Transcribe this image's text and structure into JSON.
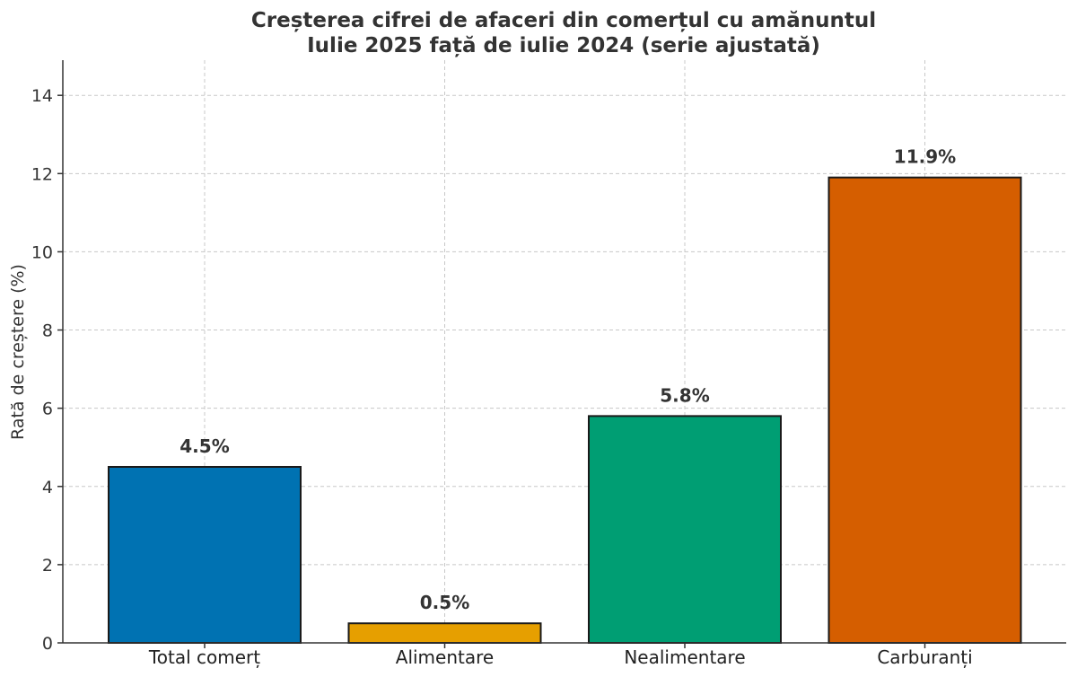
{
  "chart_data": {
    "type": "bar",
    "title_lines": [
      "Creșterea cifrei de afaceri din comerțul cu amănuntul",
      "Iulie 2025 față de iulie 2024 (serie ajustată)"
    ],
    "xlabel": "",
    "ylabel": "Rată de creștere (%)",
    "categories": [
      "Total comerț",
      "Alimentare",
      "Nealimentare",
      "Carburanți"
    ],
    "values": [
      4.5,
      0.5,
      5.8,
      11.9
    ],
    "value_labels": [
      "4.5%",
      "0.5%",
      "5.8%",
      "11.9%"
    ],
    "colors": [
      "#0072B2",
      "#E69F00",
      "#009E73",
      "#D55E00"
    ],
    "ylim": [
      0,
      14.9
    ],
    "yticks": [
      0,
      2,
      4,
      6,
      8,
      10,
      12,
      14
    ],
    "ytick_labels": [
      "0",
      "2",
      "4",
      "6",
      "8",
      "10",
      "12",
      "14"
    ],
    "grid": true,
    "legend": "none"
  }
}
